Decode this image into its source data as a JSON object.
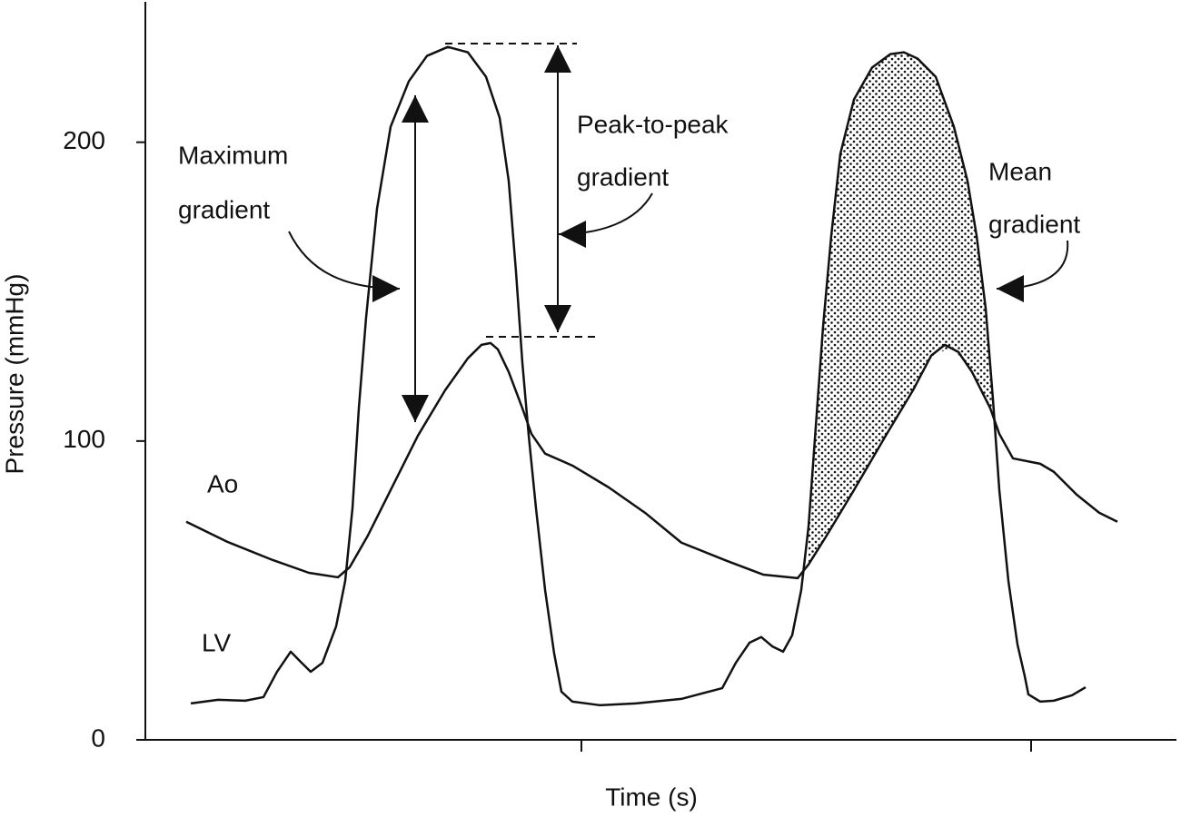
{
  "chart_data": {
    "type": "line",
    "x_label": "Time (s)",
    "y_label": "Pressure (mmHg)",
    "xlim": [
      0,
      11.35
    ],
    "xticks_unlabeled": [
      4.8,
      9.75
    ],
    "ylim": [
      0,
      247
    ],
    "yticks": [
      0,
      100,
      200
    ],
    "series": [
      {
        "name": "LV",
        "color": "#111111",
        "x": [
          0.5,
          0.8,
          1.1,
          1.3,
          1.45,
          1.6,
          1.7,
          1.82,
          1.95,
          2.1,
          2.2,
          2.28,
          2.35,
          2.43,
          2.55,
          2.7,
          2.9,
          3.1,
          3.33,
          3.55,
          3.75,
          3.9,
          4.0,
          4.08,
          4.15,
          4.22,
          4.3,
          4.4,
          4.5,
          4.58,
          4.7,
          5.0,
          5.4,
          5.9,
          6.35,
          6.5,
          6.65,
          6.78,
          6.9,
          7.02,
          7.12,
          7.22,
          7.3,
          7.38,
          7.46,
          7.55,
          7.65,
          7.8,
          8.0,
          8.2,
          8.35,
          8.5,
          8.7,
          8.9,
          9.05,
          9.15,
          9.25,
          9.33,
          9.4,
          9.5,
          9.6,
          9.68,
          9.72,
          9.85,
          10.0,
          10.2,
          10.35
        ],
        "values": [
          12.2,
          13.4,
          13.1,
          14.3,
          22.8,
          29.5,
          26.4,
          22.8,
          25.8,
          38.0,
          53.2,
          77.5,
          111.0,
          141.4,
          177.8,
          205.2,
          220.4,
          228.9,
          231.9,
          230.1,
          221.9,
          208.2,
          187.0,
          156.6,
          126.2,
          101.8,
          77.5,
          50.2,
          28.9,
          16.1,
          12.8,
          11.6,
          12.2,
          13.7,
          17.3,
          25.8,
          32.5,
          34.4,
          31.3,
          29.5,
          35.0,
          50.2,
          71.4,
          104.9,
          138.3,
          168.7,
          196.1,
          214.3,
          225.0,
          229.5,
          230.1,
          228.0,
          221.9,
          205.2,
          187.0,
          168.7,
          144.4,
          114.0,
          83.6,
          53.2,
          31.9,
          21.3,
          15.2,
          12.8,
          13.1,
          14.9,
          17.6
        ]
      },
      {
        "name": "Ao",
        "color": "#111111",
        "x": [
          0.45,
          0.9,
          1.4,
          1.8,
          2.12,
          2.25,
          2.45,
          2.7,
          3.0,
          3.3,
          3.55,
          3.7,
          3.8,
          3.88,
          4.0,
          4.15,
          4.25,
          4.4,
          4.7,
          5.1,
          5.5,
          5.9,
          6.4,
          6.8,
          7.18,
          7.3,
          7.5,
          7.8,
          8.15,
          8.45,
          8.65,
          8.8,
          8.95,
          9.1,
          9.3,
          9.4,
          9.55,
          9.85,
          10.0,
          10.25,
          10.5,
          10.7
        ],
        "values": [
          73.0,
          66.3,
          60.2,
          55.9,
          54.4,
          57.8,
          68.4,
          83.6,
          101.8,
          117.0,
          127.7,
          132.2,
          132.8,
          130.7,
          123.1,
          111.0,
          102.4,
          95.8,
          91.8,
          84.5,
          76.0,
          66.0,
          59.9,
          55.3,
          54.1,
          58.7,
          68.4,
          83.6,
          101.8,
          117.0,
          128.6,
          132.2,
          129.8,
          123.1,
          111.0,
          102.4,
          94.2,
          92.4,
          89.7,
          82.1,
          76.0,
          73.0
        ]
      }
    ],
    "annotations": {
      "max_gradient": [
        "Maximum",
        "gradient"
      ],
      "peak_gradient": [
        "Peak-to-peak",
        "gradient"
      ],
      "mean_gradient": [
        "Mean",
        "gradient"
      ]
    }
  }
}
